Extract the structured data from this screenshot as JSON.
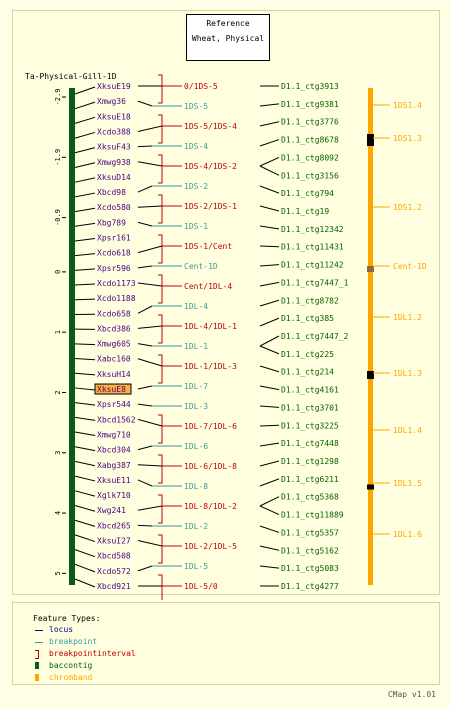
{
  "reference": {
    "title": "Reference",
    "subtitle": "Wheat, Physical"
  },
  "map_title": "Ta-Physical-Gill-1D",
  "axis_ticks": [
    {
      "label": "-2.9",
      "v": -2.9
    },
    {
      "label": "-1.9",
      "v": -1.9
    },
    {
      "label": "-0.9",
      "v": -0.9
    },
    {
      "label": "0",
      "v": 0
    },
    {
      "label": "1",
      "v": 1
    },
    {
      "label": "2",
      "v": 2
    },
    {
      "label": "3",
      "v": 3
    },
    {
      "label": "4",
      "v": 4
    },
    {
      "label": "5",
      "v": 5
    }
  ],
  "loci": [
    {
      "label": "XksuE19",
      "v": -2.9
    },
    {
      "label": "Xmwg36",
      "v": -2.57
    },
    {
      "label": "XksuE18",
      "v": -2.24
    },
    {
      "label": "Xcdo388",
      "v": -1.9
    },
    {
      "label": "XksuF43",
      "v": -1.57
    },
    {
      "label": "Xmwg938",
      "v": -1.24
    },
    {
      "label": "XksuD14",
      "v": -0.9
    },
    {
      "label": "Xbcd98",
      "v": -0.57
    },
    {
      "label": "Xcdo580",
      "v": -0.24
    },
    {
      "label": "Xbg789",
      "v": 0.1
    },
    {
      "label": "Xpsr161",
      "v": 0.43
    },
    {
      "label": "Xcdo618",
      "v": 0.76
    },
    {
      "label": "Xpsr596",
      "v": 1.1
    },
    {
      "label": "Xcdo1173",
      "v": 1.43
    },
    {
      "label": "Xcdo1188",
      "v": 1.76
    },
    {
      "label": "Xcdo658",
      "v": 2.1
    },
    {
      "label": "Xbcd386",
      "v": 2.43
    },
    {
      "label": "Xmwg605",
      "v": 2.76
    },
    {
      "label": "Xabc160",
      "v": 3.1
    },
    {
      "label": "XksuH14",
      "v": 3.43
    },
    {
      "label": "XksuE8",
      "v": 3.76,
      "highlight": true
    },
    {
      "label": "Xpsr544",
      "v": 4.1
    },
    {
      "label": "Xbcd1562",
      "v": 4.43
    },
    {
      "label": "Xmwg710",
      "v": 4.76
    },
    {
      "label": "Xbcd304",
      "v": 5.1
    },
    {
      "label": "Xabg387",
      "v": 5.43
    },
    {
      "label": "XksuE11",
      "v": 5.76
    },
    {
      "label": "Xglk710",
      "v": 6.1
    },
    {
      "label": "Xwg241",
      "v": 6.43
    },
    {
      "label": "Xbcd265",
      "v": 6.76
    },
    {
      "label": "XksuI27",
      "v": 7.1
    },
    {
      "label": "Xbcd508",
      "v": 7.43
    },
    {
      "label": "Xcdo572",
      "v": 7.76
    },
    {
      "label": "Xbcd921",
      "v": 8.1
    }
  ],
  "breakpoints": [
    {
      "label": "0/1DS-5",
      "kind": "interval"
    },
    {
      "label": "1DS-5",
      "kind": "point"
    },
    {
      "label": "1DS-5/1DS-4",
      "kind": "interval"
    },
    {
      "label": "1DS-4",
      "kind": "point"
    },
    {
      "label": "1DS-4/1DS-2",
      "kind": "interval"
    },
    {
      "label": "1DS-2",
      "kind": "point"
    },
    {
      "label": "1DS-2/1DS-1",
      "kind": "interval"
    },
    {
      "label": "1DS-1",
      "kind": "point"
    },
    {
      "label": "1DS-1/Cent",
      "kind": "interval"
    },
    {
      "label": "Cent-1D",
      "kind": "point"
    },
    {
      "label": "Cent/1DL-4",
      "kind": "interval"
    },
    {
      "label": "1DL-4",
      "kind": "point"
    },
    {
      "label": "1DL-4/1DL-1",
      "kind": "interval"
    },
    {
      "label": "1DL-1",
      "kind": "point"
    },
    {
      "label": "1DL-1/1DL-3",
      "kind": "interval"
    },
    {
      "label": "1DL-7",
      "kind": "point"
    },
    {
      "label": "1DL-3",
      "kind": "point"
    },
    {
      "label": "1DL-7/1DL-6",
      "kind": "interval"
    },
    {
      "label": "1DL-6",
      "kind": "point"
    },
    {
      "label": "1DL-6/1DL-8",
      "kind": "interval"
    },
    {
      "label": "1DL-8",
      "kind": "point"
    },
    {
      "label": "1DL-8/1DL-2",
      "kind": "interval"
    },
    {
      "label": "1DL-2",
      "kind": "point"
    },
    {
      "label": "1DL-2/1DL-5",
      "kind": "interval"
    },
    {
      "label": "1DL-5",
      "kind": "point"
    },
    {
      "label": "1DL-5/0",
      "kind": "interval"
    }
  ],
  "contigs": [
    "D1.1_ctg3913",
    "D1.1_ctg9381",
    "D1.1_ctg3776",
    "D1.1_ctg8678",
    "D1.1_ctg8092",
    "D1.1_ctg3156",
    "D1.1_ctg794",
    "D1.1_ctg19",
    "D1.1_ctg12342",
    "D1.1_ctg11431",
    "D1.1_ctg11242",
    "D1.1_ctg7447_1",
    "D1.1_ctg8782",
    "D1.1_ctg385",
    "D1.1_ctg7447_2",
    "D1.1_ctg225",
    "D1.1_ctg214",
    "D1.1_ctg4161",
    "D1.1_ctg3701",
    "D1.1_ctg3225",
    "D1.1_ctg7448",
    "D1.1_ctg1298",
    "D1.1_ctg6211",
    "D1.1_ctg5368",
    "D1.1_ctg11889",
    "D1.1_ctg5357",
    "D1.1_ctg5162",
    "D1.1_ctg5083",
    "D1.1_ctg4277"
  ],
  "chrombands": [
    "1DS1.4",
    "1DS1.3",
    "1DS1.2",
    "Cent-1D",
    "1DL1.2",
    "1DL1.3",
    "1DL1.4",
    "1DL1.5",
    "1DL1.6"
  ],
  "legend": {
    "title": "Feature Types:",
    "items": [
      {
        "label": "locus",
        "color": "#000080",
        "symbol": "line"
      },
      {
        "label": "breakpoint",
        "color": "#3a9a9a",
        "symbol": "line"
      },
      {
        "label": "breakpointinterval",
        "color": "#c00000",
        "symbol": "bracket"
      },
      {
        "label": "baccontig",
        "color": "#0a5a1a",
        "symbol": "block"
      },
      {
        "label": "chromband",
        "color": "#ffa500",
        "symbol": "block"
      }
    ]
  },
  "version": "CMap v1.01",
  "colors": {
    "locus": "#000080",
    "breakpoint": "#3a9a9a",
    "interval": "#c00000",
    "contig": "#006400",
    "chromband": "#ffa500",
    "centromere": "#8a6a3a",
    "highlight": "#ffb040"
  }
}
